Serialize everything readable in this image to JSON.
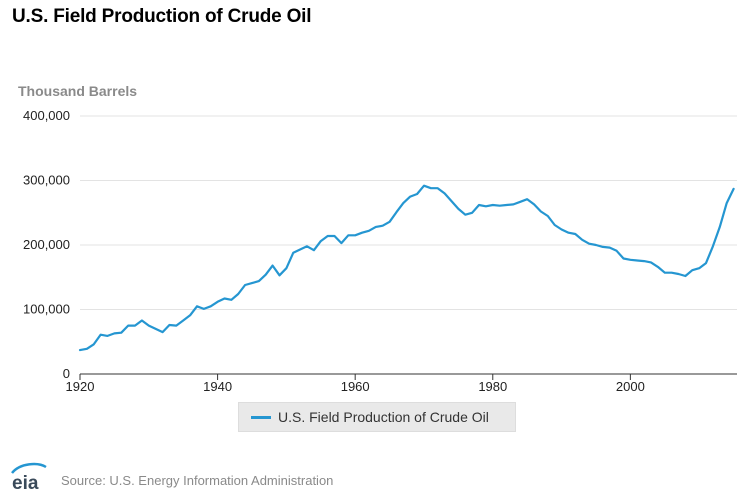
{
  "title": "U.S. Field Production of Crude Oil",
  "unit_label": "Thousand Barrels",
  "source": "Source: U.S. Energy Information Administration",
  "logo_text": "eia",
  "colors": {
    "series": "#2596d1",
    "grid": "#e3e3e3",
    "axis": "#333333"
  },
  "chart_data": {
    "type": "line",
    "title": "U.S. Field Production of Crude Oil",
    "ylabel": "Thousand Barrels",
    "xlabel": "",
    "x_range": [
      1920,
      2015.5
    ],
    "ylim": [
      0,
      400000
    ],
    "y_ticks": [
      0,
      100000,
      200000,
      300000,
      400000
    ],
    "y_tick_labels": [
      "0",
      "100,000",
      "200,000",
      "300,000",
      "400,000"
    ],
    "x_ticks": [
      1920,
      1940,
      1960,
      1980,
      2000
    ],
    "x_tick_labels": [
      "1920",
      "1940",
      "1960",
      "1980",
      "2000"
    ],
    "grid": true,
    "legend": "bottom",
    "series": [
      {
        "name": "U.S. Field Production of Crude Oil",
        "color": "#2596d1",
        "x": [
          1920,
          1921,
          1922,
          1923,
          1924,
          1925,
          1926,
          1927,
          1928,
          1929,
          1930,
          1931,
          1932,
          1933,
          1934,
          1935,
          1936,
          1937,
          1938,
          1939,
          1940,
          1941,
          1942,
          1943,
          1944,
          1945,
          1946,
          1947,
          1948,
          1949,
          1950,
          1951,
          1952,
          1953,
          1954,
          1955,
          1956,
          1957,
          1958,
          1959,
          1960,
          1961,
          1962,
          1963,
          1964,
          1965,
          1966,
          1967,
          1968,
          1969,
          1970,
          1971,
          1972,
          1973,
          1974,
          1975,
          1976,
          1977,
          1978,
          1979,
          1980,
          1981,
          1982,
          1983,
          1984,
          1985,
          1986,
          1987,
          1988,
          1989,
          1990,
          1991,
          1992,
          1993,
          1994,
          1995,
          1996,
          1997,
          1998,
          1999,
          2000,
          2001,
          2002,
          2003,
          2004,
          2005,
          2006,
          2007,
          2008,
          2009,
          2010,
          2011,
          2012,
          2013,
          2014,
          2015
        ],
        "values": [
          37000,
          39000,
          46000,
          61000,
          59000,
          63000,
          64000,
          75000,
          75000,
          83000,
          75000,
          70000,
          65000,
          76000,
          75000,
          83000,
          91000,
          105000,
          101000,
          105000,
          112000,
          117000,
          115000,
          124000,
          138000,
          141000,
          144000,
          154000,
          168000,
          153000,
          164000,
          188000,
          193000,
          198000,
          192000,
          206000,
          214000,
          214000,
          203000,
          215000,
          215000,
          219000,
          222000,
          228000,
          230000,
          236000,
          251000,
          265000,
          275000,
          279000,
          292000,
          288000,
          288000,
          280000,
          268000,
          256000,
          247000,
          250000,
          262000,
          260000,
          262000,
          261000,
          262000,
          263000,
          267000,
          271000,
          263000,
          252000,
          245000,
          231000,
          224000,
          219000,
          217000,
          208000,
          202000,
          200000,
          197000,
          196000,
          191000,
          179000,
          177000,
          176000,
          175000,
          173000,
          166000,
          157000,
          157000,
          155000,
          152000,
          161000,
          164000,
          172000,
          198000,
          228000,
          265000,
          287000
        ]
      }
    ]
  }
}
